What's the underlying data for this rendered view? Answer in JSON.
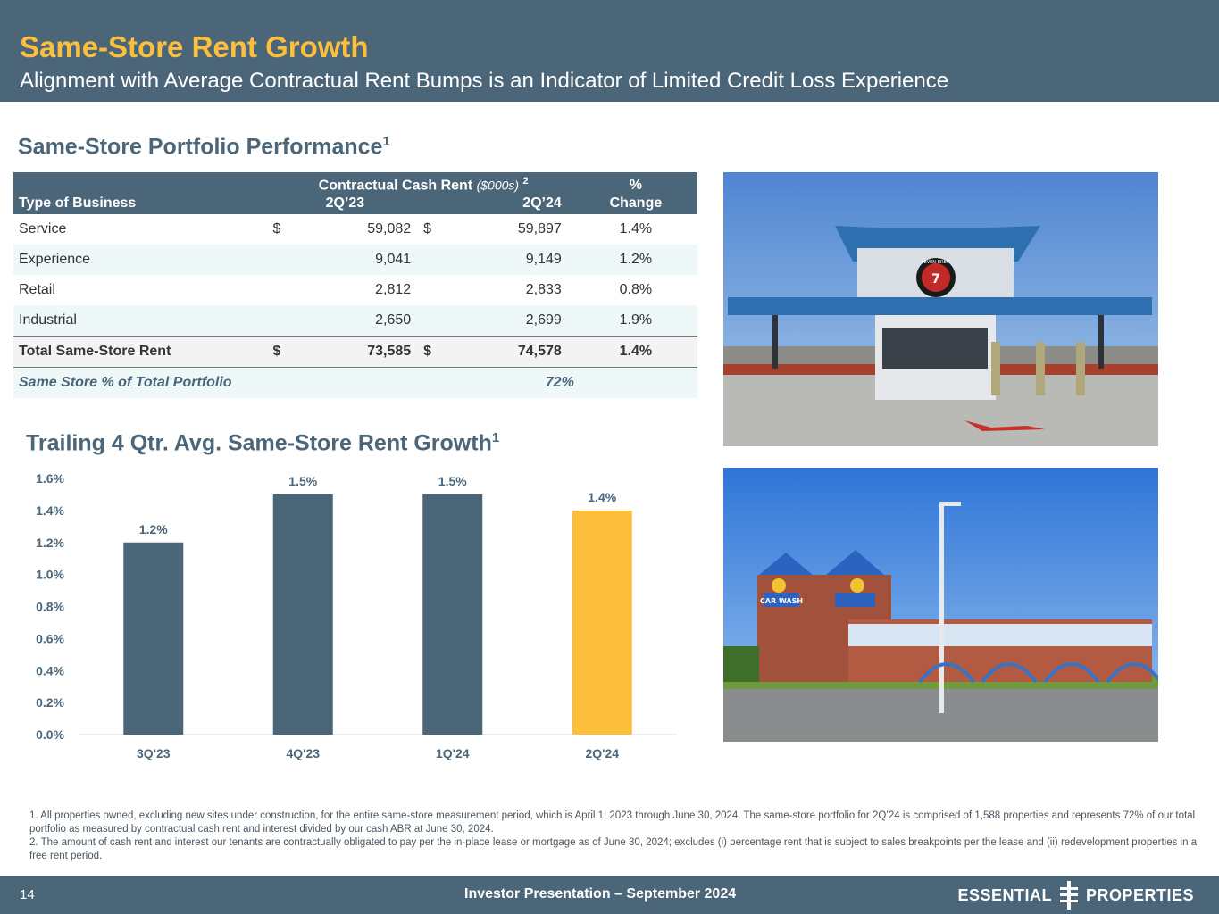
{
  "header": {
    "title": "Same-Store Rent Growth",
    "subtitle": "Alignment with Average Contractual Rent Bumps is an Indicator of Limited Credit Loss Experience"
  },
  "performance": {
    "title": "Same-Store Portfolio Performance",
    "title_sup": "1",
    "columns": {
      "type": "Type of Business",
      "group": "Contractual Cash Rent",
      "group_unit": "($000s)",
      "group_sup": "2",
      "q1": "2Q’23",
      "q2": "2Q’24",
      "pct_top": "%",
      "pct_bot": "Change"
    },
    "rows": [
      {
        "name": "Service",
        "cur1": "$",
        "v1": "59,082",
        "cur2": "$",
        "v2": "59,897",
        "chg": "1.4%"
      },
      {
        "name": "Experience",
        "cur1": "",
        "v1": "9,041",
        "cur2": "",
        "v2": "9,149",
        "chg": "1.2%"
      },
      {
        "name": "Retail",
        "cur1": "",
        "v1": "2,812",
        "cur2": "",
        "v2": "2,833",
        "chg": "0.8%"
      },
      {
        "name": "Industrial",
        "cur1": "",
        "v1": "2,650",
        "cur2": "",
        "v2": "2,699",
        "chg": "1.9%"
      }
    ],
    "total": {
      "name": "Total Same-Store Rent",
      "cur1": "$",
      "v1": "73,585",
      "cur2": "$",
      "v2": "74,578",
      "chg": "1.4%"
    },
    "pct_row": {
      "name": "Same Store % of Total Portfolio",
      "value": "72%"
    }
  },
  "trailing": {
    "title": "Trailing 4 Qtr. Avg. Same-Store Rent Growth",
    "title_sup": "1"
  },
  "chart_data": {
    "type": "bar",
    "categories": [
      "3Q'23",
      "4Q'23",
      "1Q'24",
      "2Q'24"
    ],
    "values": [
      1.2,
      1.5,
      1.5,
      1.4
    ],
    "value_labels": [
      "1.2%",
      "1.5%",
      "1.5%",
      "1.4%"
    ],
    "bar_colors": [
      "#4b6679",
      "#4b6679",
      "#4b6679",
      "#fbbf3c"
    ],
    "yticks": [
      "0.0%",
      "0.2%",
      "0.4%",
      "0.6%",
      "0.8%",
      "1.0%",
      "1.2%",
      "1.4%",
      "1.6%"
    ],
    "ylim": [
      0,
      1.6
    ],
    "grid": false
  },
  "photos": {
    "coffee_sign": "SEVEN BREW",
    "carwash_sign": "CAR WASH"
  },
  "footnotes": {
    "note1": "1. All properties owned, excluding new sites under construction, for the entire same-store measurement period, which is April 1, 2023 through June 30, 2024. The same-store portfolio for 2Q’24 is comprised of 1,588 properties and represents 72% of our total portfolio as measured by contractual cash rent and interest divided by our cash ABR at June 30, 2024.",
    "note2": "2. The amount of cash rent and interest our tenants are contractually obligated to pay per the in-place lease or mortgage as of June 30, 2024; excludes (i) percentage rent that is subject to sales breakpoints per the lease and (ii) redevelopment properties in a free rent period."
  },
  "footer": {
    "page": "14",
    "presentation": "Investor Presentation – September 2024",
    "logo_left": "ESSENTIAL",
    "logo_right": "PROPERTIES"
  },
  "colors": {
    "primary": "#4b6679",
    "accent": "#fbbf3c",
    "row_alt": "#eef8f8"
  }
}
